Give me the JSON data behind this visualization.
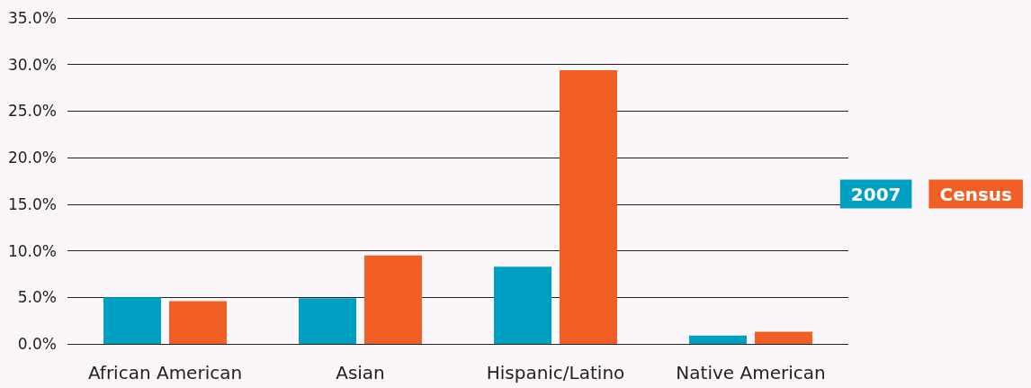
{
  "chart_data": {
    "type": "bar",
    "categories": [
      "African American",
      "Asian",
      "Hispanic/Latino",
      "Native American"
    ],
    "series": [
      {
        "name": "2007",
        "color": "#00a0c2",
        "values": [
          5.0,
          4.9,
          8.3,
          0.9
        ]
      },
      {
        "name": "Census",
        "color": "#f15f24",
        "values": [
          4.6,
          9.5,
          29.4,
          1.3
        ]
      }
    ],
    "ylim": [
      0,
      35
    ],
    "yticks": [
      {
        "value": 0,
        "label": "0.0%"
      },
      {
        "value": 5,
        "label": "5.0%"
      },
      {
        "value": 10,
        "label": "10.0%"
      },
      {
        "value": 15,
        "label": "15.0%"
      },
      {
        "value": 20,
        "label": "20.0%"
      },
      {
        "value": 25,
        "label": "25.0%"
      },
      {
        "value": 30,
        "label": "30.0%"
      },
      {
        "value": 35,
        "label": "35.0%"
      }
    ],
    "grid": "y",
    "legend": "right"
  }
}
